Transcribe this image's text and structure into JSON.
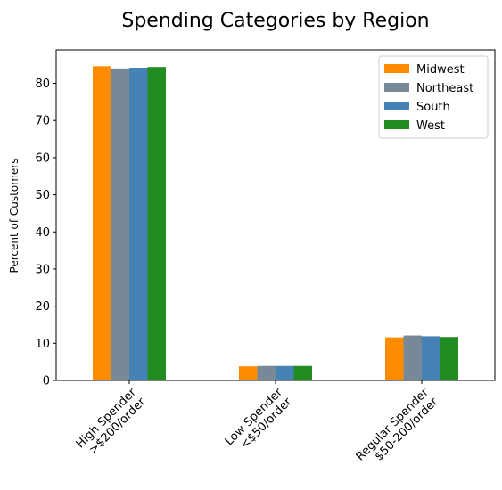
{
  "chart_data": {
    "type": "bar",
    "title": "Spending Categories by Region",
    "xlabel": "",
    "ylabel": "Percent of Customers",
    "ylim": [
      0,
      89
    ],
    "yticks": [
      0,
      10,
      20,
      30,
      40,
      50,
      60,
      70,
      80
    ],
    "categories": [
      [
        "High Spender",
        ">$200/order"
      ],
      [
        "Low Spender",
        "<$50/order"
      ],
      [
        "Regular Spender",
        "$50-200/order"
      ]
    ],
    "series": [
      {
        "name": "Midwest",
        "color": "#ff8c00",
        "values": [
          84.6,
          3.8,
          11.6
        ]
      },
      {
        "name": "Northeast",
        "color": "#778899",
        "values": [
          84.0,
          3.9,
          12.1
        ]
      },
      {
        "name": "South",
        "color": "#4682b4",
        "values": [
          84.2,
          3.9,
          11.9
        ]
      },
      {
        "name": "West",
        "color": "#228b22",
        "values": [
          84.4,
          3.9,
          11.7
        ]
      }
    ],
    "legend_position": "top-right",
    "grid": false
  }
}
